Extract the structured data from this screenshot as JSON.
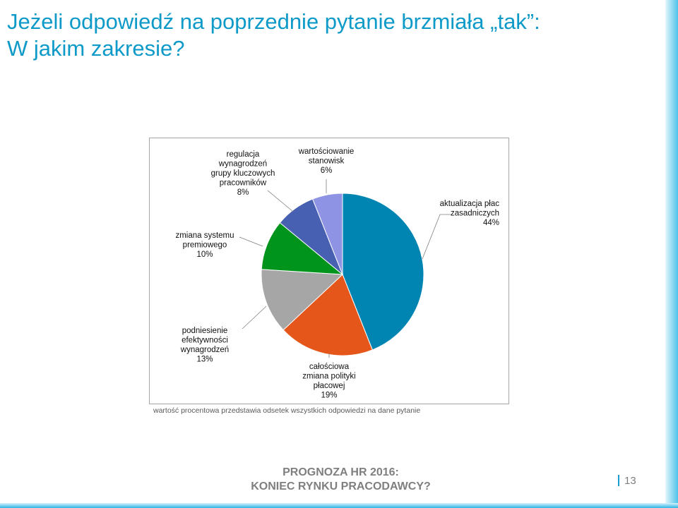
{
  "slide": {
    "title_line1": "Jeżeli odpowiedź na poprzednie pytanie brzmiała „tak”:",
    "title_line2": "W jakim zakresie?",
    "caption": "wartość procentowa przedstawia odsetek wszystkich odpowiedzi na dane pytanie",
    "footer_line1": "PROGNOZA HR 2016:",
    "footer_line2": "KONIEC RYNKU PRACODAWCY?",
    "page_number": "13"
  },
  "chart_data": {
    "type": "pie",
    "title": "",
    "slices": [
      {
        "label": "aktualizacja płac zasadniczych",
        "label_lines": [
          "aktualizacja płac",
          "zasadniczych"
        ],
        "value": 44,
        "value_label": "44%",
        "color": "#0085b3"
      },
      {
        "label": "całościowa zmiana polityki płacowej",
        "label_lines": [
          "całościowa",
          "zmiana polityki",
          "płacowej"
        ],
        "value": 19,
        "value_label": "19%",
        "color": "#e5561b"
      },
      {
        "label": "podniesienie efektywności wynagrodzeń",
        "label_lines": [
          "podniesienie",
          "efektywności",
          "wynagrodzeń"
        ],
        "value": 13,
        "value_label": "13%",
        "color": "#a6a6a6"
      },
      {
        "label": "zmiana systemu premiowego",
        "label_lines": [
          "zmiana systemu",
          "premiowego"
        ],
        "value": 10,
        "value_label": "10%",
        "color": "#00941d"
      },
      {
        "label": "regulacja wynagrodzeń grupy kluczowych pracowników",
        "label_lines": [
          "regulacja",
          "wynagrodzeń",
          "grupy kluczowych",
          "pracowników"
        ],
        "value": 8,
        "value_label": "8%",
        "color": "#4760b1"
      },
      {
        "label": "wartościowanie stanowisk",
        "label_lines": [
          "wartościowanie",
          "stanowisk"
        ],
        "value": 6,
        "value_label": "6%",
        "color": "#8f93e3"
      }
    ]
  }
}
